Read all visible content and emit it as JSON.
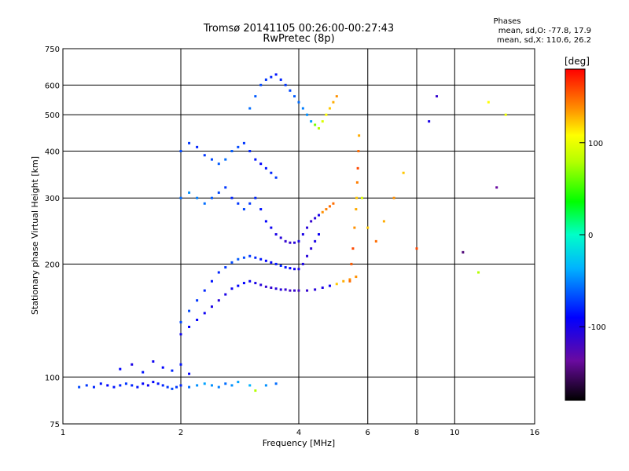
{
  "chart_data": {
    "type": "scatter",
    "title": "Tromsø 20141105 00:26:00-00:27:43",
    "subtitle": "RwPretec (8p)",
    "xlabel": "Frequency [MHz]",
    "ylabel": "Stationary phase Virtual Height [km]",
    "x_scale": "log",
    "y_scale": "log",
    "xlim": [
      1,
      16
    ],
    "ylim": [
      75,
      750
    ],
    "x_ticks": [
      1,
      2,
      4,
      6,
      8,
      10,
      16
    ],
    "x_gridlines": [
      2,
      4,
      6,
      8,
      10
    ],
    "y_ticks": [
      75,
      100,
      200,
      300,
      400,
      500,
      600,
      750
    ],
    "y_gridlines": [
      100,
      200,
      300,
      400,
      500,
      600
    ],
    "grid": true,
    "phases_box": {
      "title": "Phases",
      "line1": "mean, sd,O: -77.8, 17.9",
      "line2": "mean, sd,X: 110.6, 26.2"
    },
    "colorbar": {
      "label": "[deg]",
      "range": [
        -180,
        180
      ],
      "ticks": [
        100,
        0,
        -100
      ]
    },
    "series": [
      {
        "x": [
          1.1,
          1.15,
          1.2,
          1.25,
          1.3,
          1.35,
          1.4,
          1.45,
          1.5,
          1.55,
          1.6,
          1.65,
          1.7,
          1.75,
          1.8,
          1.85,
          1.9,
          1.95,
          2.0,
          2.1,
          2.2,
          2.3,
          2.4,
          2.5,
          2.6,
          2.7,
          2.8,
          3.0,
          3.1,
          3.3,
          3.5
        ],
        "y": [
          94,
          95,
          94,
          96,
          95,
          94,
          95,
          96,
          95,
          94,
          96,
          95,
          97,
          96,
          95,
          94,
          93,
          94,
          95,
          94,
          95,
          96,
          95,
          94,
          96,
          95,
          97,
          95,
          92,
          95,
          96
        ],
        "phase": [
          -80,
          -85,
          -90,
          -95,
          -100,
          -95,
          -90,
          -85,
          -90,
          -95,
          -100,
          -105,
          -100,
          -95,
          -90,
          -85,
          -80,
          -85,
          -90,
          -70,
          -60,
          -55,
          -60,
          -65,
          -70,
          -60,
          -55,
          -50,
          60,
          -60,
          -70
        ]
      },
      {
        "x": [
          1.4,
          1.5,
          1.6,
          1.7,
          1.8,
          1.9,
          2.0,
          2.1
        ],
        "y": [
          105,
          108,
          103,
          110,
          106,
          104,
          108,
          102
        ],
        "phase": [
          -100,
          -110,
          -95,
          -105,
          -100,
          -90,
          -95,
          -100
        ]
      },
      {
        "x": [
          2.0,
          2.1,
          2.2,
          2.3,
          2.4,
          2.5,
          2.6,
          2.7,
          2.8,
          2.9,
          3.0,
          3.1,
          3.2,
          3.3,
          3.4,
          3.5,
          3.6,
          3.7,
          3.8,
          3.9,
          4.0,
          4.2,
          4.4,
          4.6,
          4.8,
          5.0,
          5.2,
          5.4,
          5.6
        ],
        "y": [
          130,
          136,
          142,
          148,
          154,
          160,
          166,
          172,
          175,
          178,
          180,
          178,
          176,
          174,
          173,
          172,
          171,
          171,
          170,
          170,
          170,
          170,
          171,
          173,
          175,
          177,
          180,
          182,
          185
        ],
        "phase": [
          -105,
          -100,
          -100,
          -105,
          -110,
          -115,
          -110,
          -105,
          -100,
          -100,
          -105,
          -110,
          -115,
          -120,
          -120,
          -115,
          -115,
          -120,
          -125,
          -120,
          -125,
          -120,
          -115,
          -110,
          -105,
          120,
          130,
          140,
          140
        ]
      },
      {
        "x": [
          2.0,
          2.1,
          2.2,
          2.3,
          2.4,
          2.5,
          2.6,
          2.7,
          2.8,
          2.9,
          3.0,
          3.1,
          3.2,
          3.3,
          3.4,
          3.5,
          3.6,
          3.7,
          3.8,
          3.9,
          4.0,
          4.1,
          4.2,
          4.3,
          4.4,
          4.5
        ],
        "y": [
          140,
          150,
          160,
          170,
          180,
          190,
          196,
          202,
          206,
          208,
          210,
          208,
          206,
          204,
          202,
          200,
          198,
          196,
          195,
          194,
          194,
          200,
          210,
          220,
          230,
          240
        ],
        "phase": [
          -80,
          -80,
          -85,
          -90,
          -95,
          -90,
          -85,
          -80,
          -75,
          -80,
          -85,
          -90,
          -95,
          -100,
          -100,
          -95,
          -90,
          -95,
          -100,
          -105,
          -110,
          -110,
          -115,
          -115,
          -110,
          -105
        ]
      },
      {
        "x": [
          2.0,
          2.1,
          2.2,
          2.3,
          2.4,
          2.5,
          2.6,
          2.7,
          2.8,
          2.9,
          3.0,
          3.1,
          3.2,
          3.3,
          3.4,
          3.5,
          3.6,
          3.7,
          3.8,
          3.9,
          4.0,
          4.1,
          4.2,
          4.3,
          4.4,
          4.5,
          4.6,
          4.7,
          4.8,
          4.9
        ],
        "y": [
          300,
          310,
          300,
          290,
          300,
          310,
          320,
          300,
          290,
          280,
          290,
          300,
          280,
          260,
          250,
          240,
          235,
          230,
          228,
          228,
          230,
          240,
          250,
          260,
          265,
          270,
          275,
          280,
          285,
          290
        ],
        "phase": [
          -70,
          -60,
          -65,
          -70,
          -75,
          -80,
          -85,
          -90,
          -85,
          -80,
          -85,
          -90,
          -95,
          -100,
          -105,
          -110,
          -115,
          -120,
          -120,
          -115,
          -110,
          -110,
          -115,
          -120,
          -115,
          -110,
          140,
          145,
          150,
          150
        ]
      },
      {
        "x": [
          2.0,
          2.1,
          2.2,
          2.3,
          2.4,
          2.5,
          2.6,
          2.7,
          2.8,
          2.9,
          3.0,
          3.1,
          3.2,
          3.3,
          3.4,
          3.5
        ],
        "y": [
          400,
          420,
          410,
          390,
          380,
          370,
          380,
          400,
          410,
          420,
          400,
          380,
          370,
          360,
          350,
          340
        ],
        "phase": [
          -80,
          -85,
          -90,
          -85,
          -80,
          -75,
          -70,
          -75,
          -80,
          -85,
          -90,
          -95,
          -100,
          -95,
          -90,
          -85
        ]
      },
      {
        "x": [
          3.0,
          3.1,
          3.2,
          3.3,
          3.4,
          3.5,
          3.6,
          3.7,
          3.8,
          3.9,
          4.0,
          4.1,
          4.2,
          4.3,
          4.4,
          4.5,
          4.6,
          4.7,
          4.8,
          4.9,
          5.0
        ],
        "y": [
          520,
          560,
          600,
          620,
          630,
          640,
          620,
          600,
          580,
          560,
          540,
          520,
          500,
          480,
          470,
          460,
          480,
          500,
          520,
          540,
          560
        ],
        "phase": [
          -70,
          -75,
          -80,
          -85,
          -90,
          -95,
          -90,
          -85,
          -80,
          -75,
          -70,
          -65,
          -60,
          -55,
          40,
          60,
          80,
          100,
          120,
          130,
          140
        ]
      },
      {
        "x": [
          5.4,
          5.45,
          5.5,
          5.55,
          5.6,
          5.62,
          5.64,
          5.66,
          5.68,
          5.7
        ],
        "y": [
          180,
          200,
          220,
          250,
          280,
          300,
          330,
          360,
          400,
          440
        ],
        "phase": [
          150,
          155,
          160,
          140,
          130,
          120,
          145,
          160,
          150,
          130
        ]
      },
      {
        "x": [
          5.8,
          6.0,
          6.3,
          6.6,
          7.0,
          7.4,
          8.0,
          8.6,
          9.0,
          10.5,
          11.5,
          12.2,
          12.8,
          13.5
        ],
        "y": [
          300,
          250,
          230,
          260,
          300,
          350,
          220,
          480,
          560,
          215,
          190,
          540,
          320,
          500
        ],
        "phase": [
          80,
          120,
          150,
          130,
          140,
          120,
          160,
          -110,
          -120,
          -150,
          60,
          100,
          -140,
          90
        ]
      }
    ]
  }
}
